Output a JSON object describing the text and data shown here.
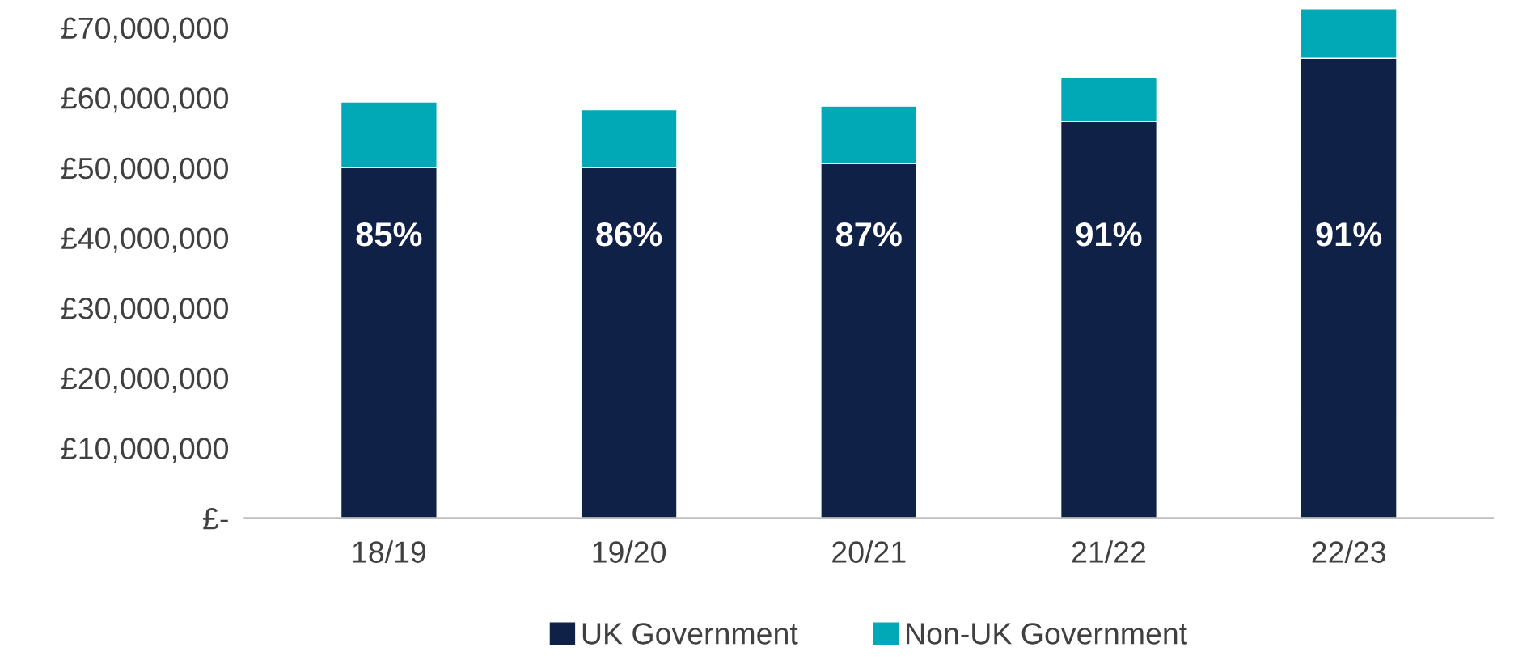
{
  "chart_data": {
    "type": "bar",
    "stacked": true,
    "categories": [
      "18/19",
      "19/20",
      "20/21",
      "21/22",
      "22/23"
    ],
    "series": [
      {
        "name": "UK Government",
        "color": "#0f2147",
        "values": [
          50000000,
          50000000,
          50600000,
          56600000,
          65600000
        ]
      },
      {
        "name": "Non-UK Government",
        "color": "#00a9b5",
        "values": [
          9400000,
          8300000,
          8200000,
          6300000,
          7100000
        ]
      }
    ],
    "ylim": [
      0,
      73000000
    ],
    "yticks": [
      {
        "value": 0,
        "label": "£-"
      },
      {
        "value": 10000000,
        "label": "£10,000,000"
      },
      {
        "value": 20000000,
        "label": "£20,000,000"
      },
      {
        "value": 30000000,
        "label": "£30,000,000"
      },
      {
        "value": 40000000,
        "label": "£40,000,000"
      },
      {
        "value": 50000000,
        "label": "£50,000,000"
      },
      {
        "value": 60000000,
        "label": "£60,000,000"
      },
      {
        "value": 70000000,
        "label": "£70,000,000"
      }
    ],
    "annotations": [
      "85%",
      "86%",
      "87%",
      "91%",
      "91%"
    ],
    "grid": false,
    "legend": "bottom"
  }
}
